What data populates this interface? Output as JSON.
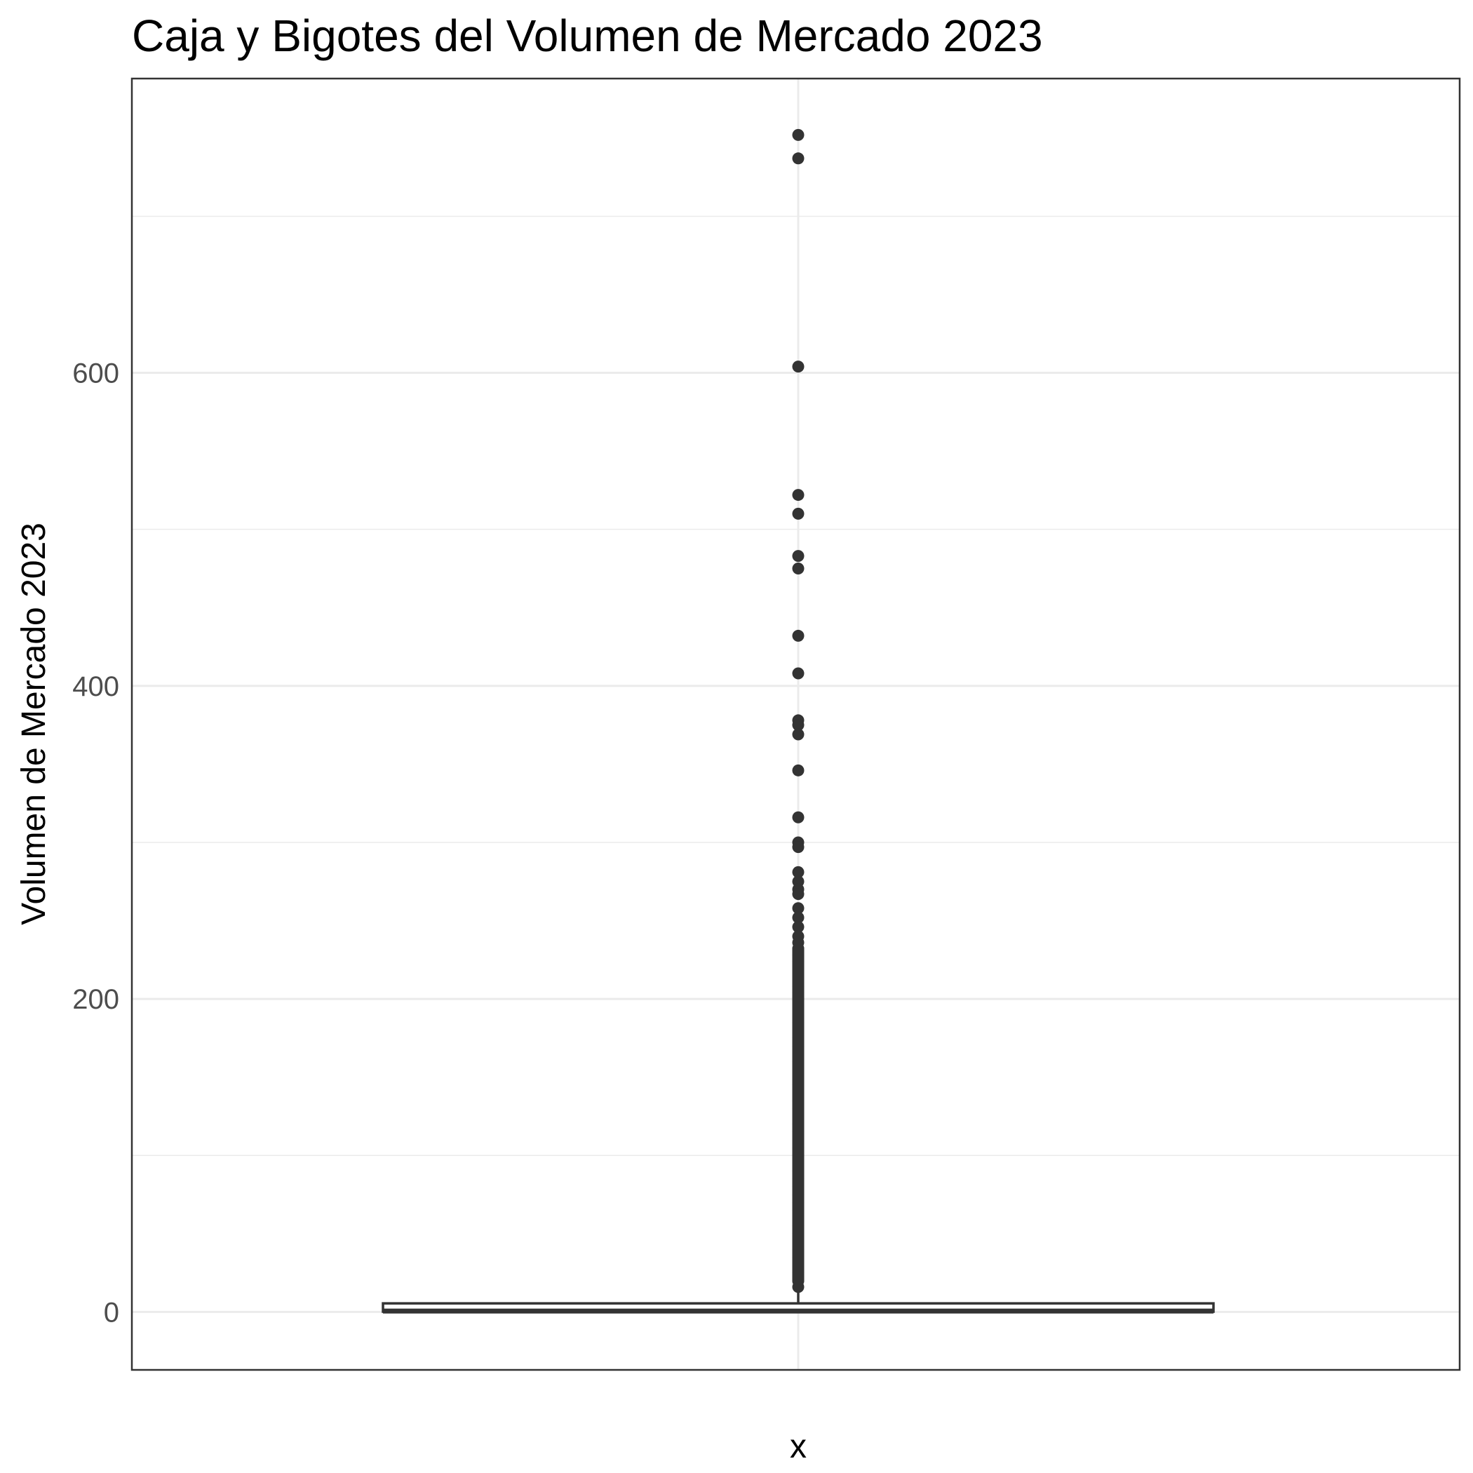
{
  "chart_data": {
    "type": "box",
    "title": "Caja y Bigotes del Volumen de Mercado 2023",
    "xlabel": "x",
    "ylabel": "Volumen de Mercado 2023",
    "ylim": [
      -37,
      788
    ],
    "y_ticks": [
      0,
      200,
      400,
      600
    ],
    "y_tick_labels": [
      "0",
      "200",
      "400",
      "600"
    ],
    "y_minor_ticks": [
      100,
      300,
      500,
      700
    ],
    "grid": true,
    "colors": {
      "box_stroke": "#333333",
      "outliers": "#333333",
      "grid": "#ebebeb"
    },
    "box": {
      "lower_whisker": 0,
      "q1": 0.2,
      "median": 0.6,
      "q3": 5.5,
      "upper_whisker": 13
    },
    "outliers": [
      752,
      737,
      604,
      522,
      510,
      483,
      475,
      432,
      408,
      378,
      375,
      369,
      346,
      316,
      300,
      297,
      281,
      275,
      270,
      267,
      258,
      252,
      246,
      240,
      236,
      232,
      228,
      224,
      220,
      216,
      212,
      208,
      204,
      200,
      195,
      190,
      185,
      180,
      175,
      170,
      165,
      160,
      155,
      150,
      145,
      140,
      135,
      130,
      125,
      120,
      115,
      110,
      105,
      100,
      95,
      90,
      85,
      80,
      75,
      70,
      65,
      60,
      55,
      50,
      45,
      40,
      35,
      30,
      25,
      20,
      16
    ]
  }
}
